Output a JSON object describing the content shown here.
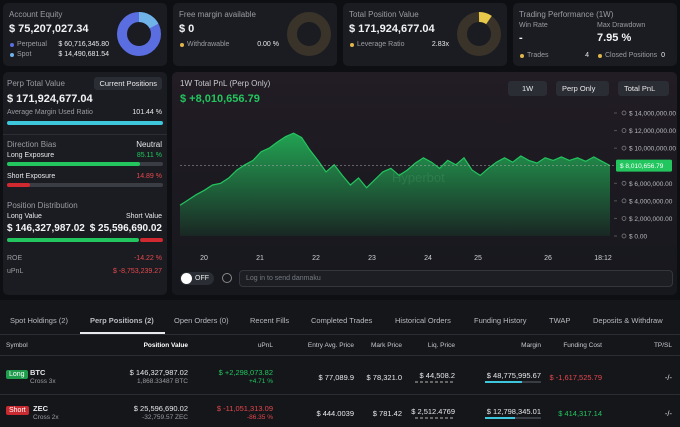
{
  "cards": [
    {
      "title": "Account Equity",
      "value": "$ 75,207,027.34",
      "rows": [
        [
          "Perpetual",
          "$ 60,716,345.80"
        ],
        [
          "Spot",
          "$ 14,490,681.54"
        ]
      ]
    },
    {
      "title": "Free margin available",
      "value": "$ 0",
      "rows": [
        [
          "Withdrawable",
          "0.00 %"
        ]
      ]
    },
    {
      "title": "Total Position Value",
      "value": "$ 171,924,677.04",
      "rows": [
        [
          "Leverage Ratio",
          "2.83x"
        ]
      ]
    },
    {
      "title": "Trading Performance (1W)",
      "win_label": "Win Rate",
      "win_value": "-",
      "dd_label": "Max Drawdown",
      "dd_value": "7.95 %",
      "rows": [
        [
          "Trades",
          "4"
        ],
        [
          "Closed Positions",
          "0"
        ]
      ]
    }
  ],
  "perp": {
    "title": "Perp Total Value",
    "button": "Current Positions",
    "value": "$ 171,924,677.04",
    "margin_label": "Average Margin Used Ratio",
    "margin_value": "101.44 %",
    "bias_title": "Direction Bias",
    "bias": "Neutral",
    "long_label": "Long Exposure",
    "long_value": "85.11 %",
    "short_label": "Short Exposure",
    "short_value": "14.89 %",
    "dist_title": "Position Distribution",
    "long_value_label": "Long Value",
    "short_value_label": "Short Value",
    "long_amount": "$ 146,327,987.02",
    "short_amount": "$ 25,596,690.02",
    "roe_label": "ROE",
    "roe": "-14.22 %",
    "upnl_label": "uPnL",
    "upnl": "$ -8,753,239.27"
  },
  "pnl_chart": {
    "type": "line",
    "title": "1W Total PnL (Perp Only)",
    "headline": "$ +8,010,656.79",
    "controls": [
      "1W",
      "Perp Only",
      "Total PnL"
    ],
    "watermark": "Hyperbot",
    "values": [
      3500000,
      4100000,
      4700000,
      5200000,
      5800000,
      6000000,
      6600000,
      7500000,
      8100000,
      8600000,
      9600000,
      10000000,
      10700000,
      11300000,
      11700000,
      11200000,
      9800000,
      8600000,
      7300000,
      8100000,
      6900000,
      5800000,
      6600000,
      5500000,
      6400000,
      7300000,
      7700000,
      6900000,
      7500000,
      8300000,
      8900000,
      8400000,
      7700000,
      8600000,
      8100000,
      8900000,
      7500000,
      6900000,
      7700000,
      8400000,
      8900000,
      8400000,
      9100000,
      8600000,
      8300000,
      8900000,
      8600000,
      9000000,
      8600000,
      8900000,
      8500000,
      9000000,
      8500000,
      8010656.79
    ],
    "color": "#22c55e",
    "ylim": [
      0,
      14000000
    ],
    "yticks": [
      {
        "value": 0,
        "label": "$ 0.00"
      },
      {
        "value": 2000000,
        "label": "$ 2,000,000.00"
      },
      {
        "value": 4000000,
        "label": "$ 4,000,000.00"
      },
      {
        "value": 6000000,
        "label": "$ 6,000,000.00"
      },
      {
        "value": 10000000,
        "label": "$ 10,000,000.00"
      },
      {
        "value": 12000000,
        "label": "$ 12,000,000.00"
      },
      {
        "value": 14000000,
        "label": "$ 14,000,000.00"
      }
    ],
    "current_value": 8010656.79,
    "current_label": "$ 8,010,656.79",
    "xtick_labels": [
      "20",
      "21",
      "22",
      "23",
      "24",
      "25",
      "26",
      "18:12"
    ]
  },
  "danmaku": {
    "toggle": "OFF",
    "placeholder": "Log in to send danmaku"
  },
  "tabs": [
    "Spot Holdings (2)",
    "Perp Positions (2)",
    "Open Orders (0)",
    "Recent Fills",
    "Completed Trades",
    "Historical Orders",
    "Funding History",
    "TWAP",
    "Deposits & Withdraw"
  ],
  "table": {
    "headers": [
      "Symbol",
      "Position Value",
      "uPnL",
      "Entry Avg. Price",
      "Mark Price",
      "Liq. Price",
      "Margin",
      "Funding Cost",
      "TP/SL"
    ],
    "rows": [
      {
        "side": "Long",
        "symbol": "BTC",
        "mode": "Cross 3x",
        "value": "$ 146,327,987.02",
        "size": "1,868.33487 BTC",
        "upnl": "$ +2,298,073.82",
        "upnl_pct": "+4.71 %",
        "entry": "$ 77,089.9",
        "mark": "$ 78,321.0",
        "liq": "$ 44,508.2",
        "margin": "$ 48,775,995.67",
        "funding": "$ -1,617,525.79",
        "tpsl": "-/-"
      },
      {
        "side": "Short",
        "symbol": "ZEC",
        "mode": "Cross 2x",
        "value": "$ 25,596,690.02",
        "size": "-32,759.57 ZEC",
        "upnl": "$ -11,051,313.09",
        "upnl_pct": "-86.35 %",
        "entry": "$ 444.0039",
        "mark": "$ 781.42",
        "liq": "$ 2,512.4769",
        "margin": "$ 12,798,345.01",
        "funding": "$ 414,317.14",
        "tpsl": "-/-"
      }
    ]
  }
}
